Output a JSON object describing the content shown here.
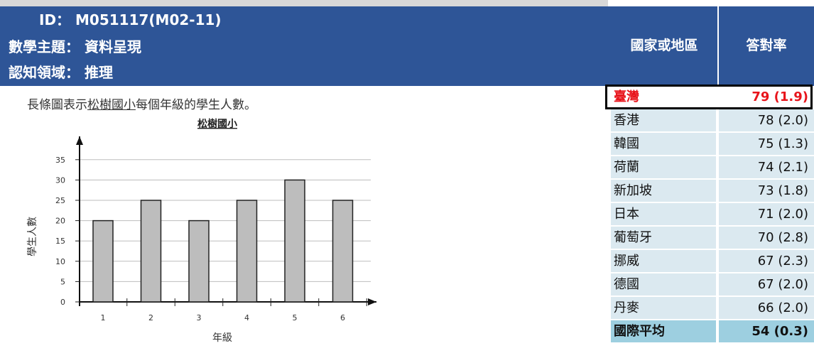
{
  "header": {
    "id_label": "ID：",
    "id_value": "M051117(M02-11)",
    "topic_label": "數學主題：",
    "topic_value": "資料呈現",
    "domain_label": "認知領域：",
    "domain_value": "推理"
  },
  "question": {
    "text_before": "長條圖表示",
    "text_underlined": "松樹國小",
    "text_after": "每個年級的學生人數。"
  },
  "chart_data": {
    "type": "bar",
    "title": "松樹國小",
    "xlabel": "年級",
    "ylabel": "學生人數",
    "categories": [
      "1",
      "2",
      "3",
      "4",
      "5",
      "6"
    ],
    "values": [
      20,
      25,
      20,
      25,
      30,
      25
    ],
    "yticks": [
      "0",
      "5",
      "10",
      "15",
      "20",
      "25",
      "30",
      "35"
    ],
    "ylim": [
      0,
      35
    ],
    "grid": true
  },
  "table": {
    "col_country": "國家或地區",
    "col_rate": "答對率",
    "rows": [
      {
        "country": "臺灣",
        "rate": "79 (1.9)"
      },
      {
        "country": "香港",
        "rate": "78 (2.0)"
      },
      {
        "country": "韓國",
        "rate": "75 (1.3)"
      },
      {
        "country": "荷蘭",
        "rate": "74 (2.1)"
      },
      {
        "country": "新加坡",
        "rate": "73 (1.8)"
      },
      {
        "country": "日本",
        "rate": "71 (2.0)"
      },
      {
        "country": "葡萄牙",
        "rate": "70 (2.8)"
      },
      {
        "country": "挪威",
        "rate": "67 (2.3)"
      },
      {
        "country": "德國",
        "rate": "67 (2.0)"
      },
      {
        "country": "丹麥",
        "rate": "66 (2.0)"
      },
      {
        "country": "國際平均",
        "rate": "54 (0.3)"
      }
    ]
  },
  "colors": {
    "header_bg": "#2e5597",
    "highlight_text": "#e8141b",
    "row_bg": "#dbe9f0",
    "avg_row_bg": "#9dcfe0",
    "bar_fill": "#bdbdbd"
  }
}
